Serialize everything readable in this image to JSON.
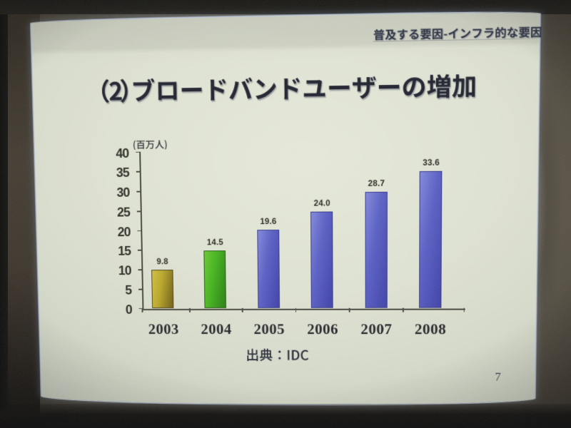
{
  "slide": {
    "header_text": "普及する要因-インフラ的な要因",
    "title": "（2）ブロードバンドユーザーの増加",
    "source_text": "出典：IDC",
    "page_number": "7"
  },
  "chart_data": {
    "type": "bar",
    "title": "（2）ブロードバンドユーザーの増加",
    "unit_label": "(百万人)",
    "categories": [
      "2003",
      "2004",
      "2005",
      "2006",
      "2007",
      "2008"
    ],
    "values": [
      9.8,
      14.5,
      19.6,
      24.0,
      28.7,
      33.6
    ],
    "data_labels": [
      "9.8",
      "14.5",
      "19.6",
      "24.0",
      "28.7",
      "33.6"
    ],
    "ylabel": "(百万人)",
    "ylim": [
      0,
      40
    ],
    "yticks": [
      0,
      5,
      10,
      15,
      20,
      25,
      30,
      35,
      40
    ],
    "grid": false,
    "legend": false,
    "source": "出典：IDC",
    "bar_colors": [
      {
        "applies_to": [
          "2003"
        ],
        "light": "#d2bf3a",
        "mid": "#bca81f",
        "dark": "#77620e",
        "edge": "#4a3f09"
      },
      {
        "applies_to": [
          "2004"
        ],
        "light": "#63cc26",
        "mid": "#3fb614",
        "dark": "#218409",
        "edge": "#1a5a07"
      },
      {
        "applies_to": [
          "2005",
          "2006",
          "2007",
          "2008"
        ],
        "light": "#7f86e0",
        "mid": "#565cc9",
        "dark": "#3b3eae",
        "edge": "#30338a"
      }
    ]
  }
}
